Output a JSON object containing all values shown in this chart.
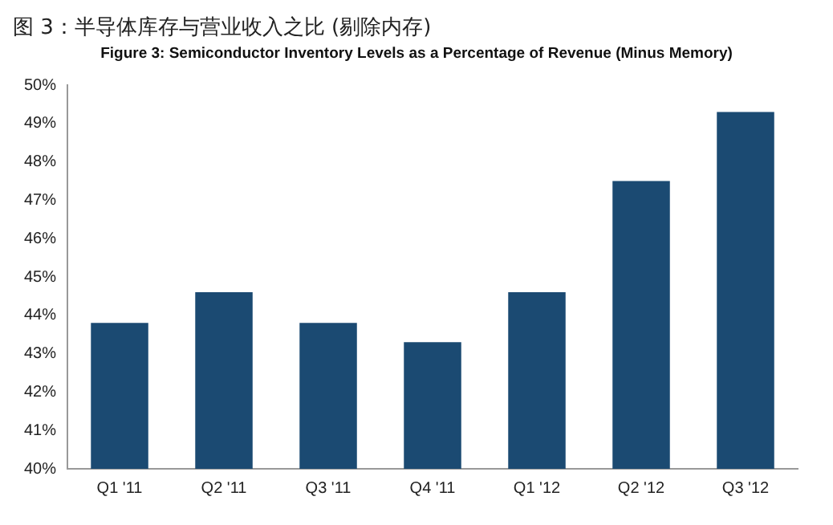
{
  "chart_data": {
    "type": "bar",
    "title": "图 3：半导体库存与营业收入之比 (剔除内存)",
    "subtitle": "Figure 3: Semiconductor Inventory Levels as a Percentage of Revenue (Minus Memory)",
    "categories": [
      "Q1 '11",
      "Q2 '11",
      "Q3 '11",
      "Q4 '11",
      "Q1 '12",
      "Q2 '12",
      "Q3 '12"
    ],
    "values": [
      43.8,
      44.6,
      43.8,
      43.3,
      44.6,
      47.5,
      49.3
    ],
    "color": "#1b4a72",
    "ylim": [
      40,
      50
    ],
    "yticks": [
      {
        "value": 40,
        "label": "40%"
      },
      {
        "value": 41,
        "label": "41%"
      },
      {
        "value": 42,
        "label": "42%"
      },
      {
        "value": 43,
        "label": "43%"
      },
      {
        "value": 44,
        "label": "44%"
      },
      {
        "value": 45,
        "label": "45%"
      },
      {
        "value": 46,
        "label": "46%"
      },
      {
        "value": 47,
        "label": "47%"
      },
      {
        "value": 48,
        "label": "48%"
      },
      {
        "value": 49,
        "label": "49%"
      },
      {
        "value": 50,
        "label": "50%"
      }
    ],
    "grid": false
  }
}
